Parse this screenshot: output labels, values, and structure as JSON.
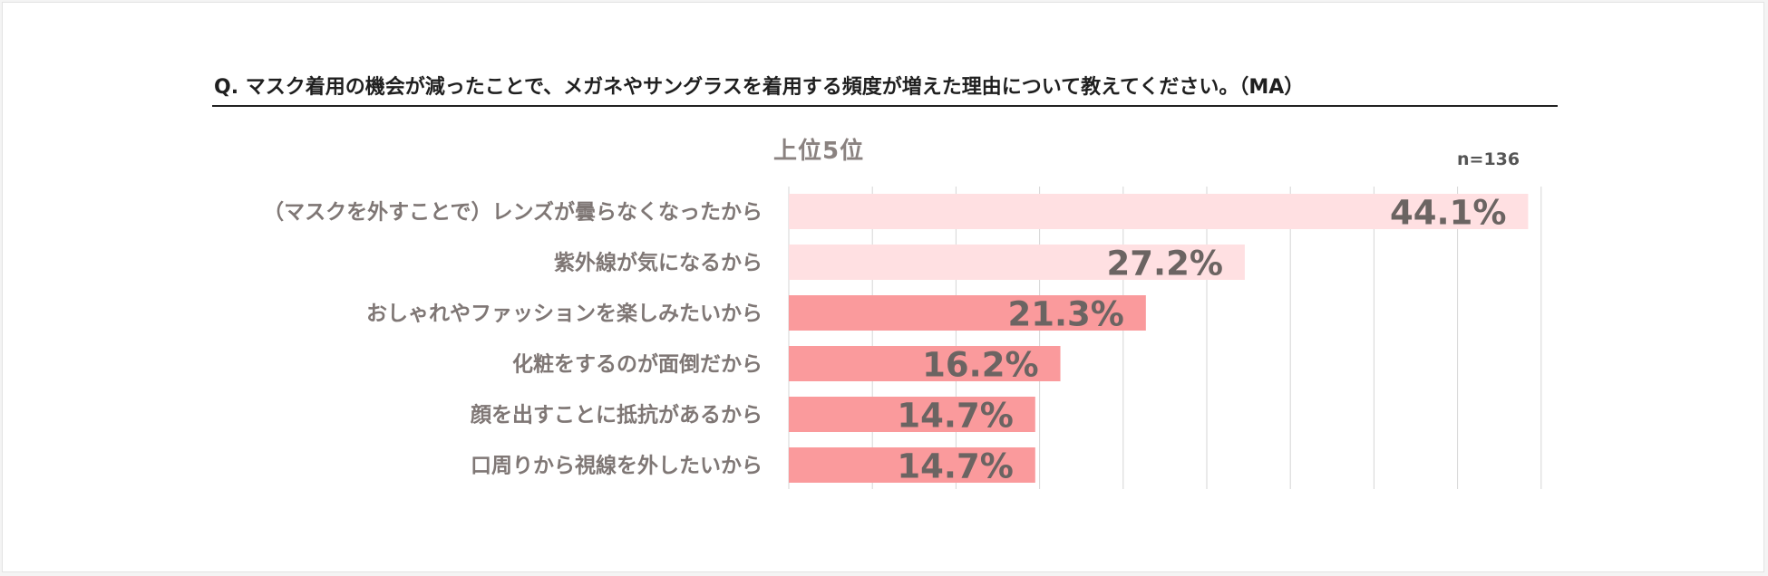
{
  "question": "Q. マスク着用の機会が減ったことで、メガネやサングラスを着用する頻度が増えた理由について教えてください。（MA）",
  "subtitle": "上位5位",
  "sample_size": "n=136",
  "colors": {
    "highlight_bar": "#ffe0e2",
    "normal_bar": "#fa9a9c",
    "grid": "#d6d6d6",
    "category_text": "#7f7775",
    "value_text": "#6b6462"
  },
  "chart_data": {
    "type": "bar",
    "orientation": "horizontal",
    "title": "上位5位",
    "categories": [
      "（マスクを外すことで）レンズが曇らなくなったから",
      "紫外線が気になるから",
      "おしゃれやファッションを楽しみたいから",
      "化粧をするのが面倒だから",
      "顔を出すことに抵抗があるから",
      "口周りから視線を外したいから"
    ],
    "values": [
      44.1,
      27.2,
      21.3,
      16.2,
      14.7,
      14.7
    ],
    "value_labels": [
      "44.1%",
      "27.2%",
      "21.3%",
      "16.2%",
      "14.7%",
      "14.7%"
    ],
    "highlighted": [
      true,
      true,
      false,
      false,
      false,
      false
    ],
    "xlim": [
      0,
      45
    ],
    "grid": true,
    "unit": "%"
  }
}
